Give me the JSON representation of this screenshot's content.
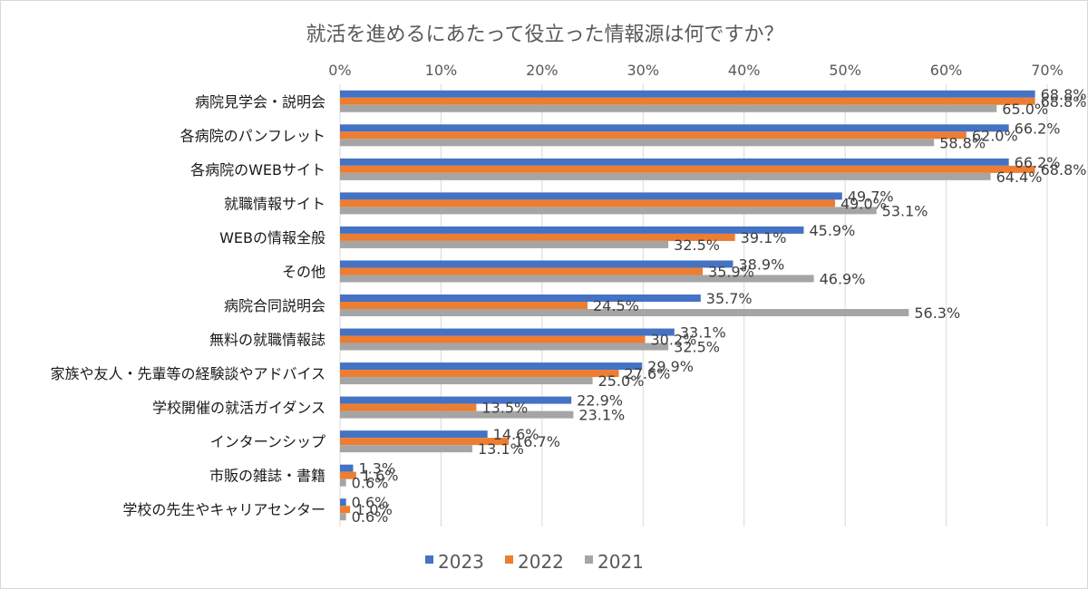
{
  "chart_data": {
    "type": "bar",
    "orientation": "horizontal",
    "title": "就活を進めるにあたって役立った情報源は何ですか？",
    "xlabel": "",
    "ylabel": "",
    "xlim": [
      0,
      70
    ],
    "xticks": [
      "0%",
      "10%",
      "20%",
      "30%",
      "40%",
      "50%",
      "60%",
      "70%"
    ],
    "grid": true,
    "legend_position": "bottom",
    "categories": [
      "病院見学会・説明会",
      "各病院のパンフレット",
      "各病院のWEBサイト",
      "就職情報サイト",
      "WEBの情報全般",
      "その他",
      "病院合同説明会",
      "無料の就職情報誌",
      "家族や友人・先輩等の経験談やアドバイス",
      "学校開催の就活ガイダンス",
      "インターンシップ",
      "市販の雑誌・書籍",
      "学校の先生やキャリアセンター"
    ],
    "series": [
      {
        "name": "2023",
        "color": "#4472C4",
        "values": [
          68.8,
          66.2,
          66.2,
          49.7,
          45.9,
          38.9,
          35.7,
          33.1,
          29.9,
          22.9,
          14.6,
          1.3,
          0.6
        ],
        "labels": [
          "68.8%",
          "66.2%",
          "66.2%",
          "49.7%",
          "45.9%",
          "38.9%",
          "35.7%",
          "33.1%",
          "29.9%",
          "22.9%",
          "14.6%",
          "1.3%",
          "0.6%"
        ]
      },
      {
        "name": "2022",
        "color": "#ED7D31",
        "values": [
          68.8,
          62.0,
          68.8,
          49.0,
          39.1,
          35.9,
          24.5,
          30.2,
          27.6,
          13.5,
          16.7,
          1.6,
          1.0
        ],
        "labels": [
          "68.8%",
          "62.0%",
          "68.8%",
          "49.0%",
          "39.1%",
          "35.9%",
          "24.5%",
          "30.2%",
          "27.6%",
          "13.5%",
          "16.7%",
          "1.6%",
          "1.0%"
        ]
      },
      {
        "name": "2021",
        "color": "#A5A5A5",
        "values": [
          65.0,
          58.8,
          64.4,
          53.1,
          32.5,
          46.9,
          56.3,
          32.5,
          25.0,
          23.1,
          13.1,
          0.6,
          0.6
        ],
        "labels": [
          "65.0%",
          "58.8%",
          "64.4%",
          "53.1%",
          "32.5%",
          "46.9%",
          "56.3%",
          "32.5%",
          "25.0%",
          "23.1%",
          "13.1%",
          "0.6%",
          "0.6%"
        ]
      }
    ]
  }
}
